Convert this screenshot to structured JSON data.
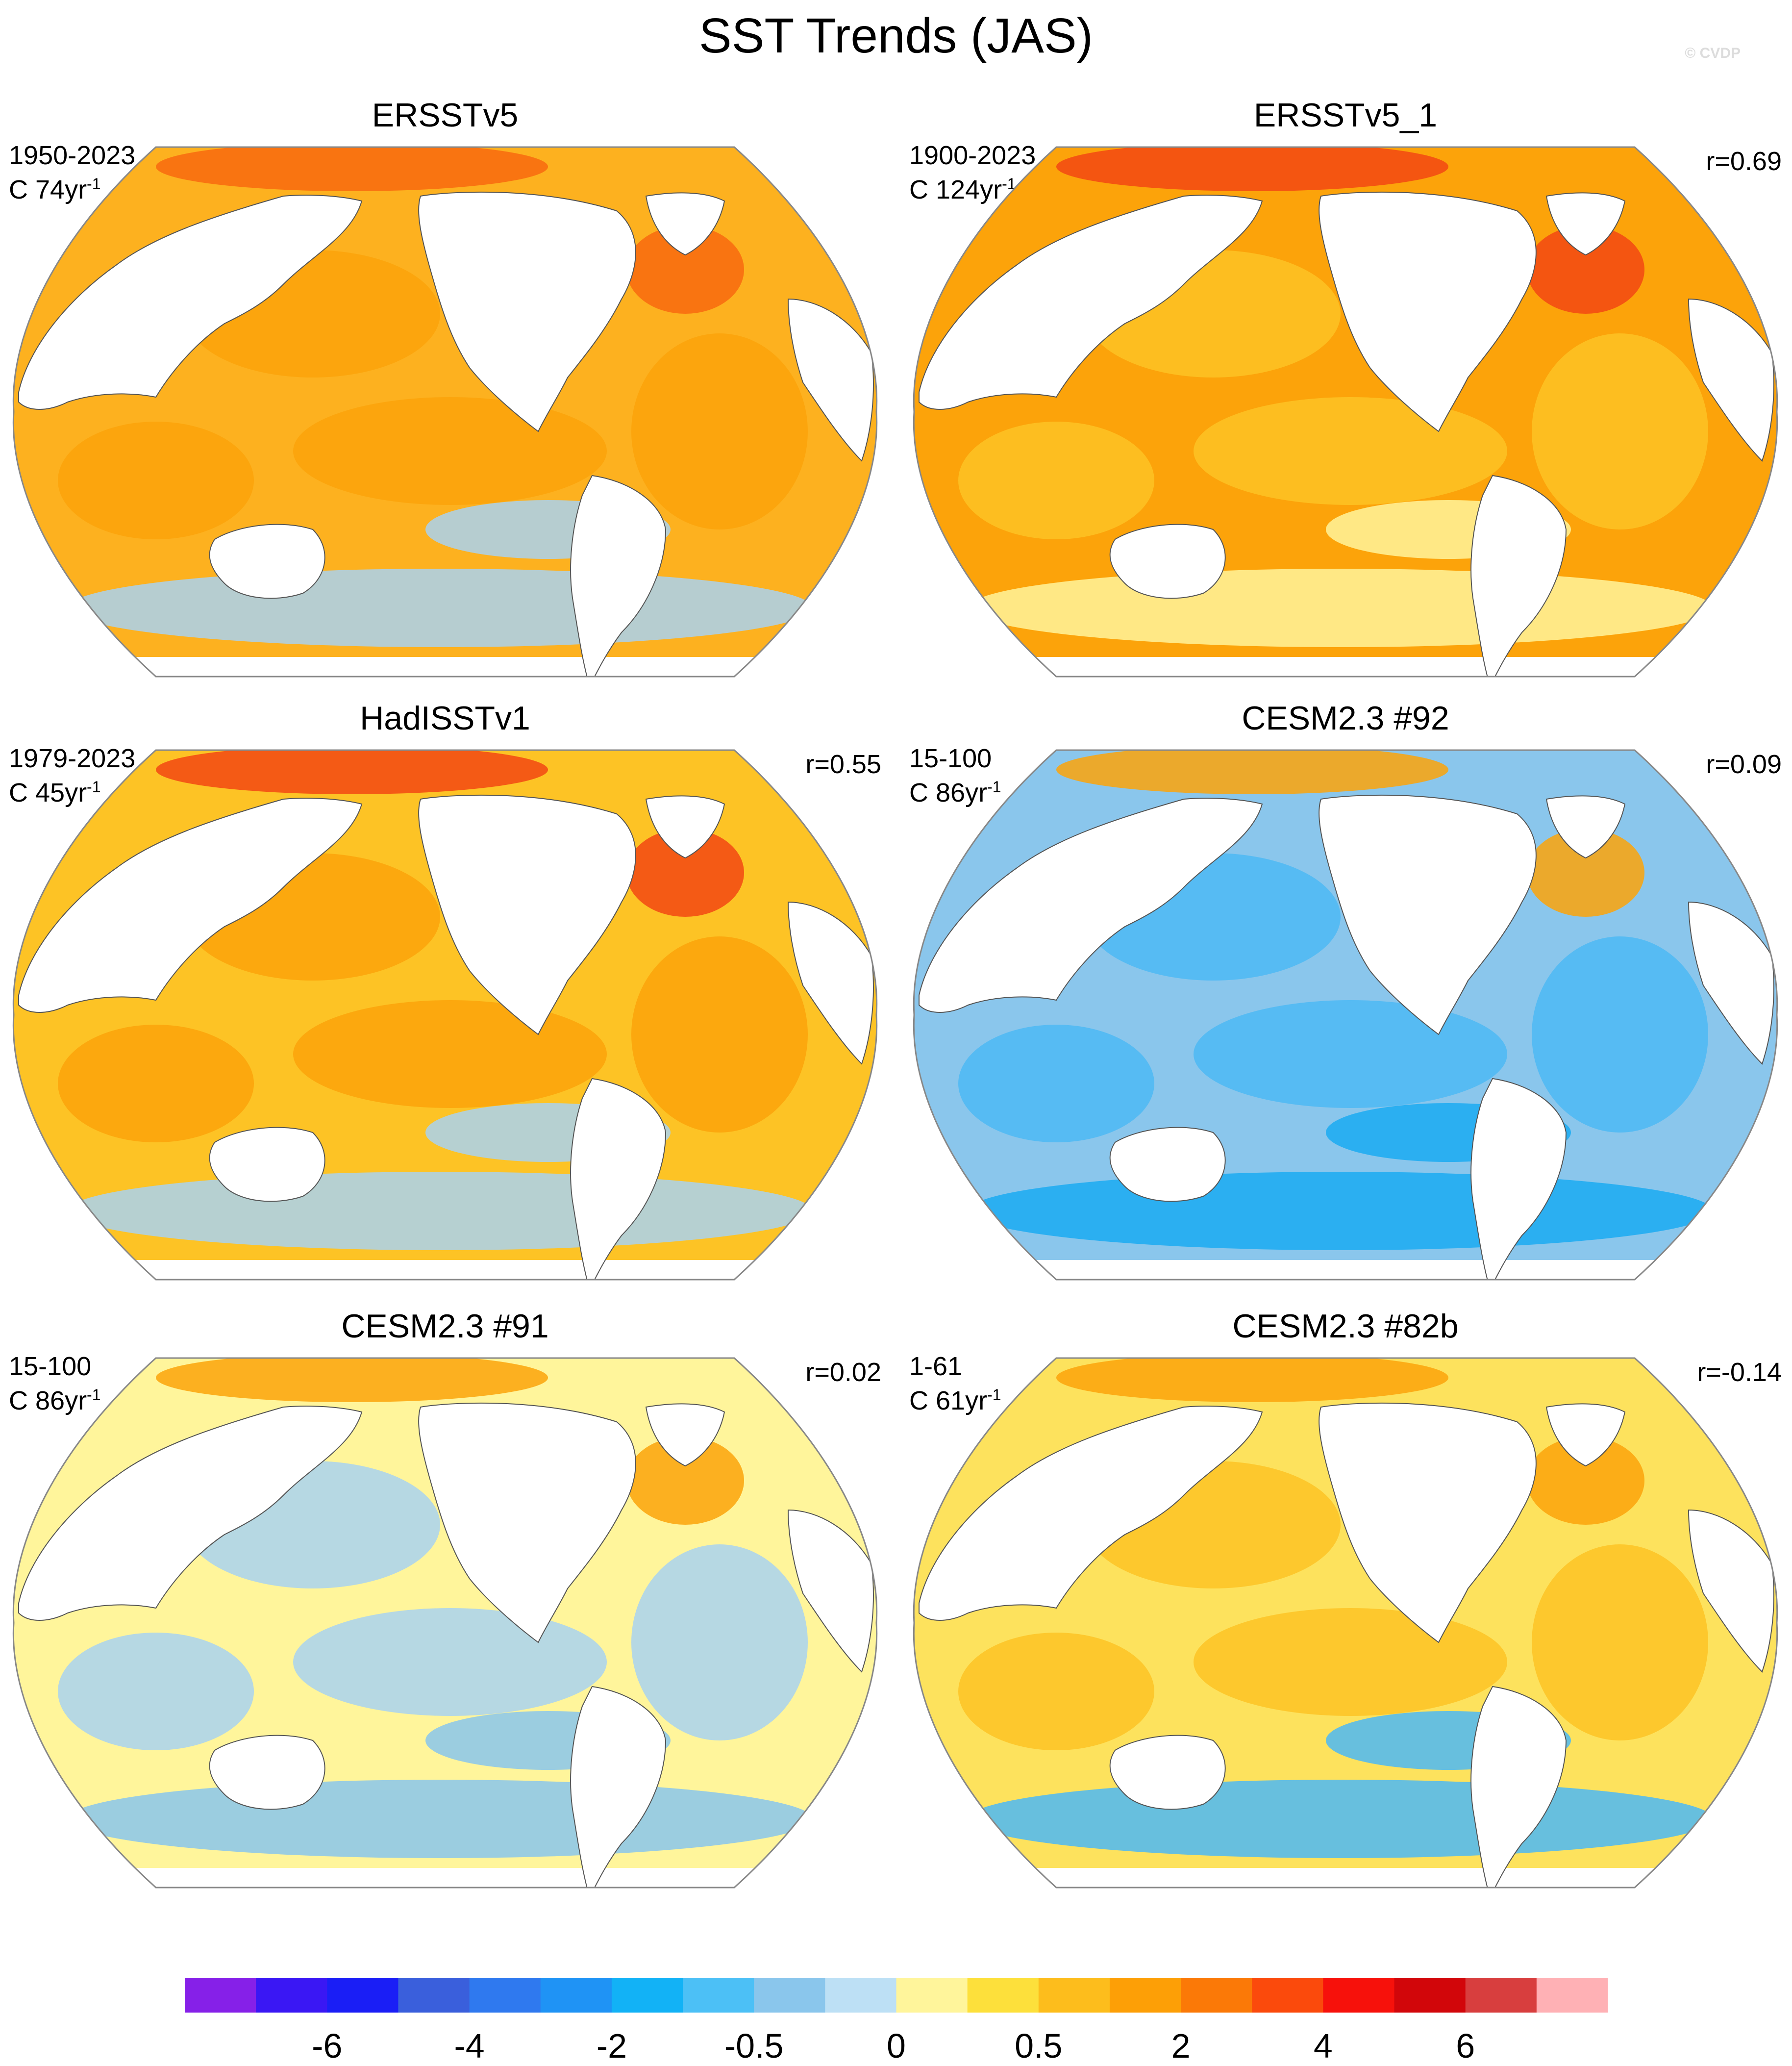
{
  "title": "SST Trends (JAS)",
  "watermark": "© CVDP",
  "panels": [
    {
      "title": "ERSSTv5",
      "period": "1950-2023",
      "units_prefix": "C ",
      "units_value": "74yr",
      "units_exp": "-1",
      "corr": "",
      "fill": "#fdb11f",
      "patch": "#fca30a",
      "cold": "#a9d2f0",
      "warm": "#f86a0f"
    },
    {
      "title": "ERSSTv5_1",
      "period": "1900-2023",
      "units_prefix": "C ",
      "units_value": "124yr",
      "units_exp": "-1",
      "corr": "r=0.69",
      "fill": "#fca30a",
      "patch": "#fdc325",
      "cold": "#fff59b",
      "warm": "#f24813"
    },
    {
      "title": "HadISSTv1",
      "period": "1979-2023",
      "units_prefix": "C ",
      "units_value": "45yr",
      "units_exp": "-1",
      "corr": "r=0.55",
      "fill": "#fdc325",
      "patch": "#fca30a",
      "cold": "#a9d2f0",
      "warm": "#f24813"
    },
    {
      "title": "CESM2.3 #92",
      "period": "15-100",
      "units_prefix": "C ",
      "units_value": "86yr",
      "units_exp": "-1",
      "corr": "r=0.09",
      "fill": "#8ac6ec",
      "patch": "#4cb9f4",
      "cold": "#1aaaf2",
      "warm": "#fca30a"
    },
    {
      "title": "CESM2.3 #91",
      "period": "15-100",
      "units_prefix": "C ",
      "units_value": "86yr",
      "units_exp": "-1",
      "corr": "r=0.02",
      "fill": "#fff59b",
      "patch": "#a9d2f0",
      "cold": "#8ac6ec",
      "warm": "#fca30a"
    },
    {
      "title": "CESM2.3 #82b",
      "period": "1-61",
      "units_prefix": "C ",
      "units_value": "61yr",
      "units_exp": "-1",
      "corr": "r=-0.14",
      "fill": "#fde25d",
      "patch": "#fdc325",
      "cold": "#4cb9f4",
      "warm": "#fca30a"
    }
  ],
  "colorbar": {
    "colors": [
      "#8620e8",
      "#3a17f4",
      "#1a1ef6",
      "#3a5fdc",
      "#2f79ef",
      "#1f93f5",
      "#12b2f6",
      "#4cc0f6",
      "#8ac6ec",
      "#bde0f5",
      "#fff59b",
      "#fde03b",
      "#fdbd1c",
      "#fd9f06",
      "#fb7907",
      "#fb4a0c",
      "#f7110b",
      "#d2060a",
      "#d83e3e",
      "#ffb1b5"
    ],
    "labels": [
      "-6",
      "-4",
      "-2",
      "-0.5",
      "0",
      "0.5",
      "2",
      "4",
      "6"
    ]
  }
}
